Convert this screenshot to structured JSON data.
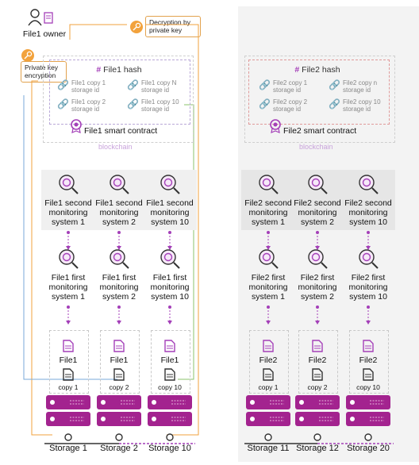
{
  "owner": {
    "label": "File1 owner"
  },
  "notes": {
    "decryption": "Decryption by private key",
    "encryption": "Private key encryption"
  },
  "left": {
    "hash_title": "File1 hash",
    "copies": [
      {
        "name": "File1 copy 1",
        "sub": "storage id"
      },
      {
        "name": "File1 copy N",
        "sub": "storage id"
      },
      {
        "name": "File1 copy 2",
        "sub": "storage id"
      },
      {
        "name": "File1 copy 10",
        "sub": "storage id"
      }
    ],
    "contract": "File1 smart contract",
    "chain": "blockchain",
    "second_monitors": [
      "File1 second monitoring system 1",
      "File1 second monitoring system 2",
      "File1 second monitoring system 10"
    ],
    "first_monitors": [
      "File1 first monitoring system 1",
      "File1 first monitoring system 2",
      "File1 first monitoring system 10"
    ],
    "files": [
      {
        "name": "File1",
        "copy": "copy 1"
      },
      {
        "name": "File1",
        "copy": "copy 2"
      },
      {
        "name": "File1",
        "copy": "copy 10"
      }
    ],
    "storages": [
      "Storage 1",
      "Storage 2",
      "Storage 10"
    ]
  },
  "right": {
    "hash_title": "File2 hash",
    "copies": [
      {
        "name": "File2 copy 1",
        "sub": "storage id"
      },
      {
        "name": "File2 copy n",
        "sub": "storage id"
      },
      {
        "name": "File2 copy 2",
        "sub": "storage id"
      },
      {
        "name": "File2 copy 10",
        "sub": "storage id"
      }
    ],
    "contract": "File2 smart contract",
    "chain": "blockchain",
    "second_monitors": [
      "File2 second monitoring system 1",
      "File2 second monitoring system 2",
      "File2 second monitoring system 10"
    ],
    "first_monitors": [
      "File2 first monitoring system 1",
      "File2 first monitoring system 2",
      "File2 first monitoring system 10"
    ],
    "files": [
      {
        "name": "File2",
        "copy": "copy 1"
      },
      {
        "name": "File2",
        "copy": "copy 2"
      },
      {
        "name": "File2",
        "copy": "copy 10"
      }
    ],
    "storages": [
      "Storage 11",
      "Storage 12",
      "Storage 20"
    ]
  },
  "colors": {
    "accent": "#a43fb8",
    "server": "#a3238f",
    "note_border": "#e2a24e",
    "chain": "#c9a3db"
  },
  "icons": {
    "person": "person-icon",
    "key": "key-icon",
    "hash": "hash-icon",
    "link": "link-icon",
    "badge": "badge-icon",
    "search": "magnifier-icon",
    "document": "document-icon",
    "server": "server-icon"
  }
}
